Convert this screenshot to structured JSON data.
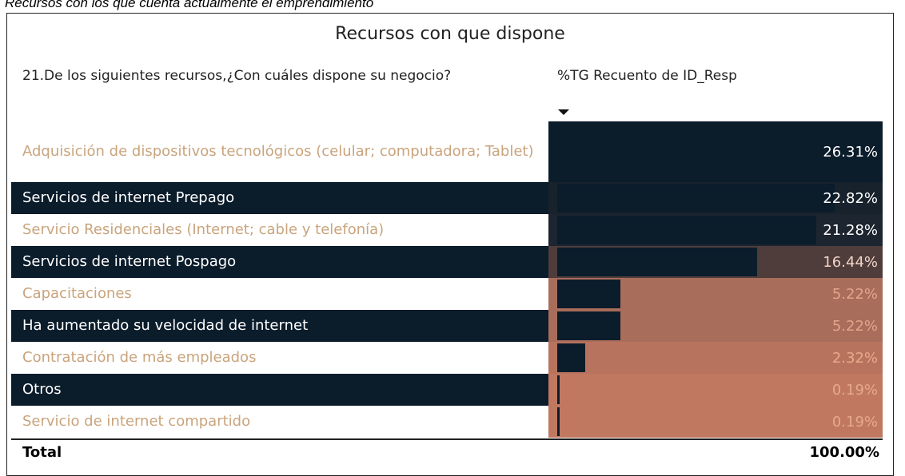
{
  "caption": "Recursos con los que cuenta actualmente el emprendimiento",
  "title": "Recursos con que dispone",
  "table": {
    "headers": [
      "21.De los siguientes recursos,¿Con cuáles dispone su negocio?",
      "%TG Recuento de ID_Resp"
    ],
    "rows": [
      {
        "label": "Adquisición de dispositivos tecnológicos (celular; computadora; Tablet)",
        "value": 26.31,
        "value_label": "26.31%",
        "background": "#0b1c2b",
        "value_color": "#ffffff"
      },
      {
        "label": "Servicios de internet Prepago",
        "value": 22.82,
        "value_label": "22.82%",
        "background": "#18222c",
        "value_color": "#ffffff"
      },
      {
        "label": "Servicio Residenciales (Internet; cable y telefonía)",
        "value": 21.28,
        "value_label": "21.28%",
        "background": "#1c2530",
        "value_color": "#ffffff"
      },
      {
        "label": "Servicios de internet Pospago",
        "value": 16.44,
        "value_label": "16.44%",
        "background": "#4f3d3c",
        "value_color": "#f2d4c6"
      },
      {
        "label": "Capacitaciones",
        "value": 5.22,
        "value_label": "5.22%",
        "background": "#a86d5b",
        "value_color": "#e3a58a"
      },
      {
        "label": "Ha aumentado su velocidad de internet",
        "value": 5.22,
        "value_label": "5.22%",
        "background": "#a86d5b",
        "value_color": "#e3a58a"
      },
      {
        "label": "Contratación de más empleados",
        "value": 2.32,
        "value_label": "2.32%",
        "background": "#b8735e",
        "value_color": "#e7a98d"
      },
      {
        "label": "Otros",
        "value": 0.19,
        "value_label": "0.19%",
        "background": "#c07860",
        "value_color": "#e7a98d"
      },
      {
        "label": "Servicio de internet compartido",
        "value": 0.19,
        "value_label": "0.19%",
        "background": "#c07860",
        "value_color": "#e7a98d"
      }
    ],
    "total": {
      "label": "Total",
      "value": 100,
      "value_label": "100.00%"
    }
  }
}
